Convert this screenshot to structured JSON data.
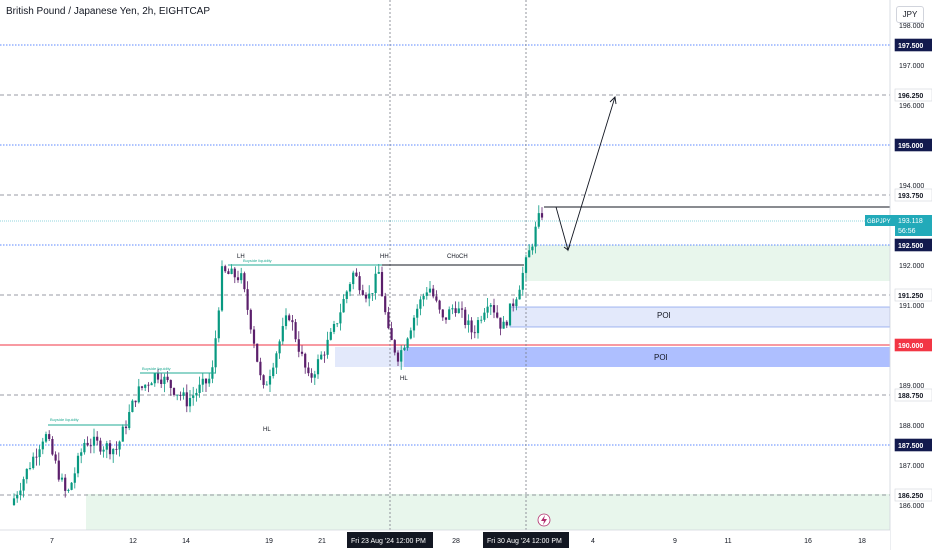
{
  "header": {
    "symbol_title": "British Pound / Japanese Yen, 2h, EIGHTCAP",
    "currency_button": "JPY"
  },
  "colors": {
    "up": "#089981",
    "down": "#5b1f6b",
    "key_level": "#2962ff",
    "red_level": "#f23645",
    "structure_line": "#22ab94",
    "poi_fill": "#dbe5ff",
    "poi_dark": "#aebfff",
    "demand_fill": "#dff2e5",
    "badge": "#131a4e",
    "current_badge": "#22aab9"
  },
  "chart_data": {
    "type": "candlestick",
    "title": "British Pound / Japanese Yen, 2h, EIGHTCAP",
    "ylim": [
      185.75,
      198.6
    ],
    "y_axis_labels": [
      "198.000",
      "197.000",
      "196.000",
      "195.000",
      "194.000",
      "193.000",
      "192.000",
      "191.000",
      "190.000",
      "189.000",
      "188.000",
      "187.000",
      "186.000"
    ],
    "x_axis_labels": [
      "7",
      "12",
      "14",
      "19",
      "21",
      "28",
      "4",
      "9",
      "11",
      "16",
      "18"
    ],
    "x_axis_highlights": [
      "Fri 23 Aug '24   12:00 PM",
      "Fri 30 Aug '24   12:00 PM"
    ],
    "candle_window": [
      185.9,
      192.9
    ],
    "current_price": {
      "label": "GBPJPY",
      "value": "193.118",
      "countdown": "56:56"
    },
    "key_levels": [
      {
        "value": 197.5,
        "label": "197.500",
        "style": "dotted-blue"
      },
      {
        "value": 196.25,
        "label": "196.250",
        "style": "dashed-gray"
      },
      {
        "value": 195.0,
        "label": "195.000",
        "style": "dotted-blue"
      },
      {
        "value": 193.75,
        "label": "193.750",
        "style": "dashed-gray"
      },
      {
        "value": 192.5,
        "label": "192.500",
        "style": "dotted-blue"
      },
      {
        "value": 191.25,
        "label": "191.250",
        "style": "dashed-gray"
      },
      {
        "value": 190.0,
        "label": "190.000",
        "style": "solid-red"
      },
      {
        "value": 188.75,
        "label": "188.750",
        "style": "dashed-gray"
      },
      {
        "value": 187.5,
        "label": "187.500",
        "style": "dotted-blue"
      },
      {
        "value": 186.25,
        "label": "186.250",
        "style": "dashed-gray"
      }
    ],
    "zones": [
      {
        "label": "POI",
        "from": 190.55,
        "to": 191.05
      },
      {
        "label": "POI",
        "from": 189.55,
        "to": 189.95
      }
    ],
    "annotations": [
      "LH",
      "HH",
      "CHoCH",
      "HL",
      "HL",
      "Buyside liquidity",
      "Buyside liquidity",
      "Buyside liquidity"
    ]
  }
}
